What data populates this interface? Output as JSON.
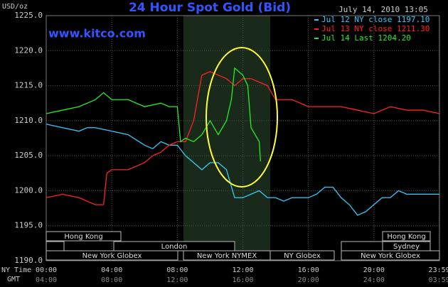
{
  "chart_data": {
    "type": "line",
    "title": "24 Hour Spot Gold (Bid)",
    "subtitle": "www.kitco.com",
    "date": "July 14, 2010 13:05",
    "y_label": "USD/oz",
    "x_label": "NY Time",
    "x2_label": "GMT",
    "ylim": [
      1190,
      1225
    ],
    "yticks": [
      {
        "value": 1225,
        "label": "1225.0"
      },
      {
        "value": 1220,
        "label": "1220.0"
      },
      {
        "value": 1215,
        "label": "1215.0"
      },
      {
        "value": 1210,
        "label": "1210.0"
      },
      {
        "value": 1205,
        "label": "1205.0"
      },
      {
        "value": 1200,
        "label": "1200.0"
      },
      {
        "value": 1195,
        "label": "1195.0"
      },
      {
        "value": 1190,
        "label": "1190.0"
      }
    ],
    "xlim": [
      0,
      24
    ],
    "xticks": [
      {
        "value": 0,
        "label": "00:00"
      },
      {
        "value": 4,
        "label": "04:00"
      },
      {
        "value": 8,
        "label": "08:00"
      },
      {
        "value": 12,
        "label": "12:00"
      },
      {
        "value": 16,
        "label": "16:00"
      },
      {
        "value": 20,
        "label": "20:00"
      },
      {
        "value": 23.983,
        "label": "23:59"
      }
    ],
    "x2ticks": [
      "04:00",
      "08:00",
      "12:00",
      "16:00",
      "20:00",
      "24:00",
      "03:59"
    ],
    "grid": true,
    "sessions": [
      "Hong Kong",
      "London",
      "New York Globex",
      "New York NYMEX",
      "NY Globex",
      "Sydney",
      "Hong Kong",
      "New York Globex"
    ],
    "series": [
      {
        "name": "Jul 12 NY close 1197.10",
        "color": "#33ccff",
        "x": [
          0,
          1,
          2,
          2.5,
          3,
          4,
          5,
          6,
          6.5,
          7,
          7.5,
          8,
          8.5,
          9,
          9.5,
          10,
          10.5,
          11,
          11.5,
          12,
          12.5,
          13,
          13.5,
          14,
          14.5,
          15,
          16,
          16.5,
          17,
          17.5,
          18,
          18.5,
          19,
          19.5,
          20,
          20.5,
          21,
          21.5,
          22,
          23,
          24
        ],
        "values": [
          1209.5,
          1209,
          1208.5,
          1209,
          1209,
          1208.5,
          1208,
          1206.5,
          1206,
          1207,
          1206.5,
          1206.5,
          1205,
          1204,
          1203,
          1204,
          1204,
          1203,
          1199,
          1199,
          1199.5,
          1200,
          1199,
          1199,
          1198.5,
          1199,
          1199,
          1199.5,
          1200.5,
          1200.5,
          1199,
          1198,
          1196.5,
          1197,
          1198,
          1199,
          1199,
          1200,
          1199.5,
          1199.5,
          1199.5
        ]
      },
      {
        "name": "Jul 13 NY close 1211.30",
        "color": "#ff2222",
        "x": [
          0,
          1,
          2,
          3,
          3.5,
          3.7,
          4,
          5,
          6,
          6.5,
          7,
          7.5,
          8,
          8.5,
          9,
          9.3,
          9.5,
          10,
          10.5,
          11,
          11.5,
          12,
          12.5,
          13,
          13.5,
          14,
          15,
          16,
          17,
          18,
          19,
          20,
          21,
          22,
          23,
          24
        ],
        "values": [
          1199,
          1199.5,
          1199,
          1198,
          1198,
          1202.5,
          1203,
          1203,
          1204,
          1205,
          1205.5,
          1206.5,
          1207,
          1207,
          1210,
          1214,
          1216.5,
          1217,
          1216.5,
          1216,
          1215,
          1216,
          1216,
          1215.5,
          1215,
          1213,
          1213,
          1212,
          1212,
          1212,
          1211.5,
          1211,
          1212,
          1211.5,
          1211.5,
          1211
        ]
      },
      {
        "name": "Jul 14 Last 1204.20",
        "color": "#22ee22",
        "x": [
          0,
          1,
          2,
          3,
          3.5,
          4,
          5,
          6,
          7,
          7.5,
          8,
          8.2,
          8.5,
          9,
          9.5,
          10,
          10.5,
          11,
          11.3,
          11.5,
          12,
          12.3,
          12.5,
          13,
          13.08
        ],
        "values": [
          1211,
          1211.5,
          1212,
          1213,
          1214,
          1213,
          1213,
          1212,
          1212.5,
          1212,
          1212,
          1207,
          1207.5,
          1207,
          1208,
          1210,
          1208,
          1210,
          1213,
          1217.5,
          1216.5,
          1215,
          1209,
          1207,
          1204.2
        ]
      }
    ]
  }
}
